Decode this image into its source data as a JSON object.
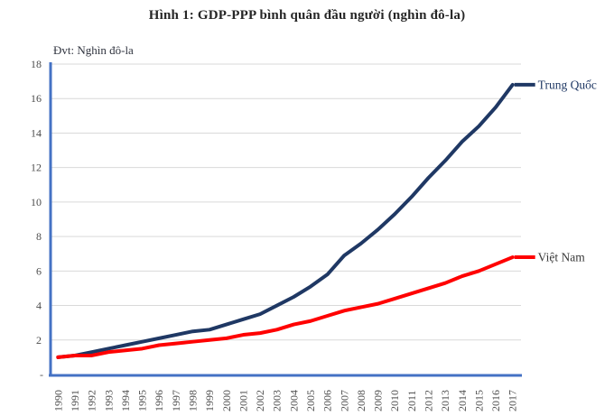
{
  "figure": {
    "title": "Hình 1: GDP-PPP bình quân đầu người (nghìn đô-la)",
    "unit_label": "Đvt: Nghìn đô-la"
  },
  "colors": {
    "axis": "#4472c4",
    "grid": "#d9d9d9",
    "title_text": "#262626",
    "tick_text": "#4d4d4d"
  },
  "chart_data": {
    "type": "line",
    "title": "Hình 1: GDP-PPP bình quân đầu người (nghìn đô-la)",
    "xlabel": "",
    "ylabel": "Nghìn đô-la",
    "x": [
      1990,
      1991,
      1992,
      1993,
      1994,
      1995,
      1996,
      1997,
      1998,
      1999,
      2000,
      2001,
      2002,
      2003,
      2004,
      2005,
      2006,
      2007,
      2008,
      2009,
      2010,
      2011,
      2012,
      2013,
      2014,
      2015,
      2016,
      2017
    ],
    "series": [
      {
        "id": "trung-quoc",
        "name": "Trung Quốc",
        "color": "#1f3864",
        "label_color": "#1f3864",
        "values": [
          1.0,
          1.1,
          1.3,
          1.5,
          1.7,
          1.9,
          2.1,
          2.3,
          2.5,
          2.6,
          2.9,
          3.2,
          3.5,
          4.0,
          4.5,
          5.1,
          5.8,
          6.9,
          7.6,
          8.4,
          9.3,
          10.3,
          11.4,
          12.4,
          13.5,
          14.4,
          15.5,
          16.8
        ]
      },
      {
        "id": "viet-nam",
        "name": "Việt Nam",
        "color": "#ff0000",
        "label_color": "#3a3a3a",
        "values": [
          1.0,
          1.1,
          1.1,
          1.3,
          1.4,
          1.5,
          1.7,
          1.8,
          1.9,
          2.0,
          2.1,
          2.3,
          2.4,
          2.6,
          2.9,
          3.1,
          3.4,
          3.7,
          3.9,
          4.1,
          4.4,
          4.7,
          5.0,
          5.3,
          5.7,
          6.0,
          6.4,
          6.8
        ]
      }
    ],
    "ylim": [
      0,
      18
    ],
    "ytick_step": 2,
    "zero_tick_label": "-",
    "grid": true,
    "legend_position": "end-of-line-labels"
  }
}
